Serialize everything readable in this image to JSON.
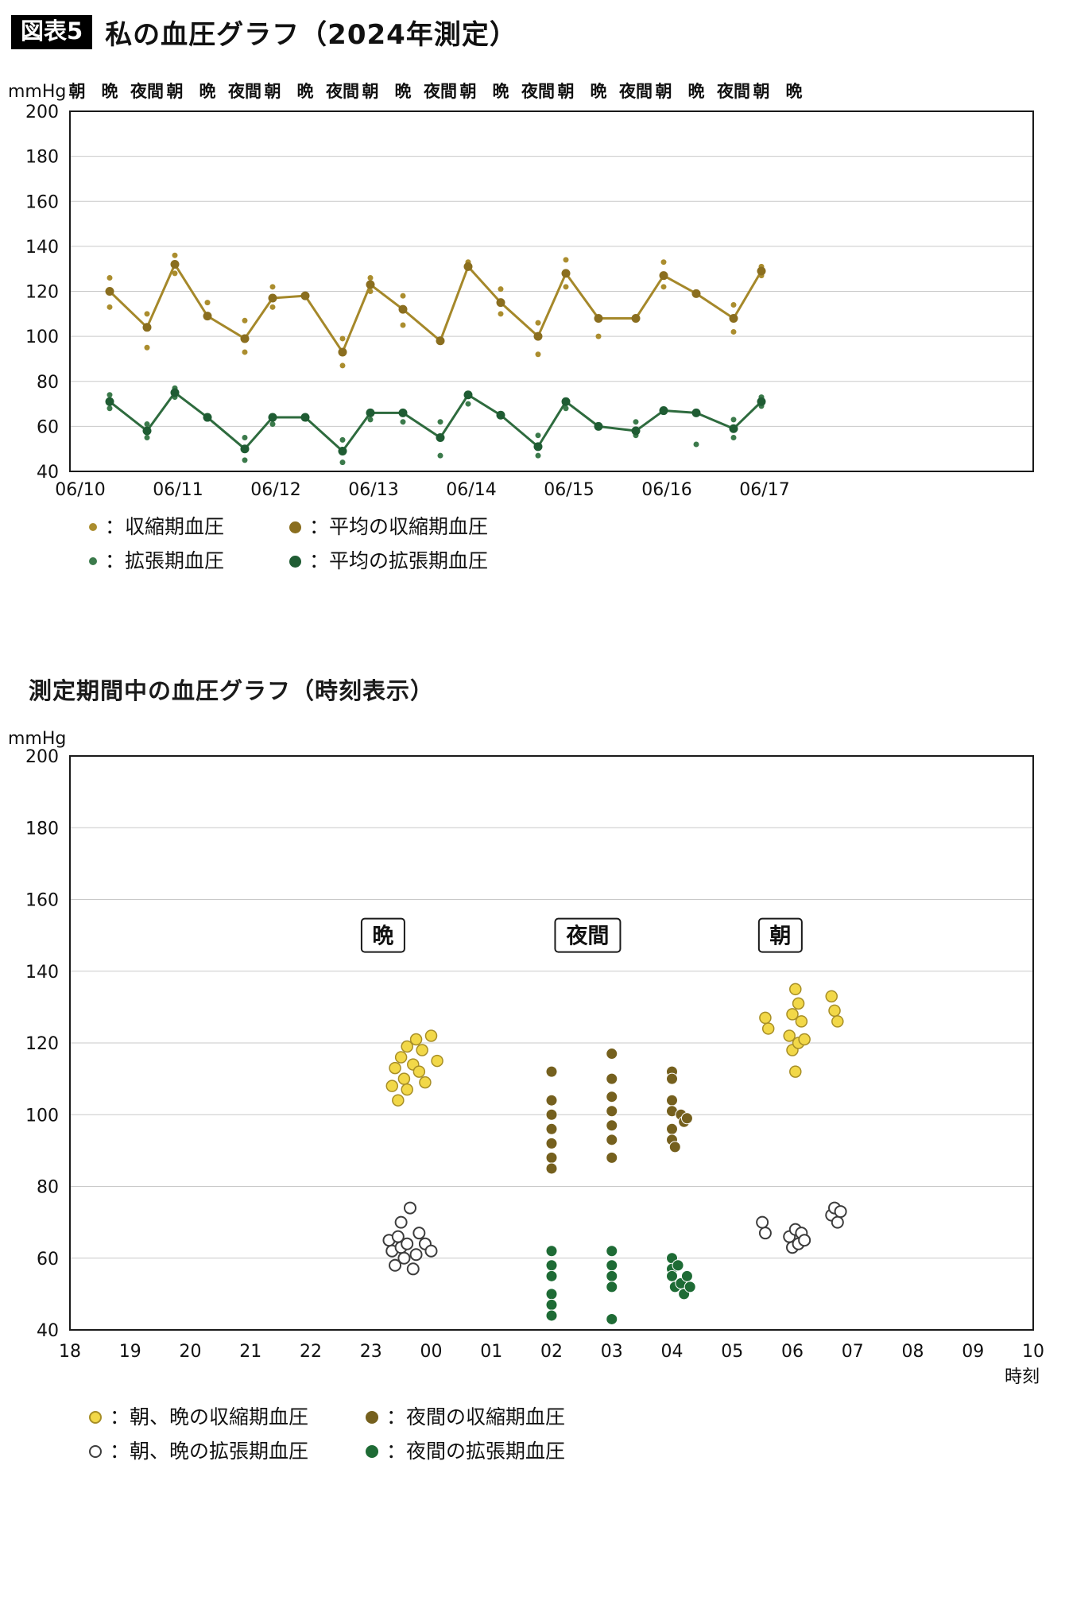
{
  "header": {
    "tag": "図表5",
    "title": "私の血圧グラフ（2024年測定）"
  },
  "section2": {
    "title": "測定期間中の血圧グラフ（時刻表示）"
  },
  "colors": {
    "grid": "#c9c9c9",
    "frame": "#1a1a1a",
    "systolic": "#ab8d2e",
    "systolic_line": "#a5882a",
    "systolic_mean": "#8a6e1f",
    "diastolic": "#3b7a4b",
    "diastolic_line": "#2e6b3e",
    "diastolic_mean": "#1f5c33",
    "yellow": "#f2d848",
    "yellow_stroke": "#a78e26",
    "olive": "#75601e",
    "night_green": "#1e6b35",
    "open_stroke": "#3c3c3c"
  },
  "legend1": {
    "items": [
      {
        "icon": "systolic-reading-dot",
        "label": "：収縮期血圧"
      },
      {
        "icon": "mean-systolic-dot",
        "label": "：平均の収縮期血圧"
      },
      {
        "icon": "diastolic-reading-dot",
        "label": "：拡張期血圧"
      },
      {
        "icon": "mean-diastolic-dot",
        "label": "：平均の拡張期血圧"
      }
    ]
  },
  "legend2": {
    "items": [
      {
        "icon": "morning-evening-systolic-dot",
        "label": "：朝、晩の収縮期血圧"
      },
      {
        "icon": "night-systolic-dot",
        "label": "：夜間の収縮期血圧"
      },
      {
        "icon": "morning-evening-diastolic-dot",
        "label": "：朝、晩の拡張期血圧"
      },
      {
        "icon": "night-diastolic-dot",
        "label": "：夜間の拡張期血圧"
      }
    ]
  },
  "chart_data": [
    {
      "type": "line",
      "title": "私の血圧グラフ（2024年測定）",
      "unit": "mmHg",
      "ylim": [
        40,
        200
      ],
      "grid": true,
      "y_tick_labels": [
        200,
        180,
        160,
        140,
        120,
        100,
        80,
        60,
        40
      ],
      "dates": [
        "06/10",
        "06/11",
        "06/12",
        "06/13",
        "06/14",
        "06/15",
        "06/16",
        "06/17"
      ],
      "slot_labels": [
        "朝",
        "晩",
        "夜間"
      ],
      "mean_systolic_label": "平均の収縮期血圧",
      "mean_diastolic_label": "平均の拡張期血圧",
      "systolic_label": "収縮期血圧",
      "diastolic_label": "拡張期血圧",
      "mean_systolic": [
        [
          0,
          1,
          120
        ],
        [
          0,
          2,
          104
        ],
        [
          1,
          0,
          132
        ],
        [
          1,
          1,
          109
        ],
        [
          1,
          2,
          99
        ],
        [
          2,
          0,
          117
        ],
        [
          2,
          1,
          118
        ],
        [
          2,
          2,
          93
        ],
        [
          3,
          0,
          123
        ],
        [
          3,
          1,
          112
        ],
        [
          3,
          2,
          98
        ],
        [
          4,
          0,
          131
        ],
        [
          4,
          1,
          115
        ],
        [
          4,
          2,
          100
        ],
        [
          5,
          0,
          128
        ],
        [
          5,
          1,
          108
        ],
        [
          5,
          2,
          108
        ],
        [
          6,
          0,
          127
        ],
        [
          6,
          1,
          119
        ],
        [
          6,
          2,
          108
        ],
        [
          7,
          0,
          129
        ]
      ],
      "mean_diastolic": [
        [
          0,
          1,
          71
        ],
        [
          0,
          2,
          58
        ],
        [
          1,
          0,
          75
        ],
        [
          1,
          1,
          64
        ],
        [
          1,
          2,
          50
        ],
        [
          2,
          0,
          64
        ],
        [
          2,
          1,
          64
        ],
        [
          2,
          2,
          49
        ],
        [
          3,
          0,
          66
        ],
        [
          3,
          1,
          66
        ],
        [
          3,
          2,
          55
        ],
        [
          4,
          0,
          74
        ],
        [
          4,
          1,
          65
        ],
        [
          4,
          2,
          51
        ],
        [
          5,
          0,
          71
        ],
        [
          5,
          1,
          60
        ],
        [
          5,
          2,
          58
        ],
        [
          6,
          0,
          67
        ],
        [
          6,
          1,
          66
        ],
        [
          6,
          2,
          59
        ],
        [
          7,
          0,
          71
        ]
      ],
      "systolic_readings": [
        [
          0,
          1,
          113
        ],
        [
          0,
          1,
          126
        ],
        [
          0,
          2,
          95
        ],
        [
          0,
          2,
          110
        ],
        [
          1,
          0,
          136
        ],
        [
          1,
          0,
          128
        ],
        [
          1,
          1,
          115
        ],
        [
          1,
          2,
          93
        ],
        [
          1,
          2,
          107
        ],
        [
          2,
          0,
          113
        ],
        [
          2,
          0,
          122
        ],
        [
          2,
          2,
          87
        ],
        [
          2,
          2,
          99
        ],
        [
          3,
          0,
          120
        ],
        [
          3,
          0,
          126
        ],
        [
          3,
          1,
          105
        ],
        [
          3,
          1,
          118
        ],
        [
          4,
          0,
          133
        ],
        [
          4,
          1,
          110
        ],
        [
          4,
          1,
          121
        ],
        [
          4,
          2,
          92
        ],
        [
          4,
          2,
          106
        ],
        [
          5,
          0,
          134
        ],
        [
          5,
          0,
          122
        ],
        [
          5,
          1,
          100
        ],
        [
          6,
          0,
          133
        ],
        [
          6,
          0,
          122
        ],
        [
          6,
          2,
          102
        ],
        [
          6,
          2,
          114
        ],
        [
          7,
          0,
          127
        ],
        [
          7,
          0,
          131
        ]
      ],
      "diastolic_readings": [
        [
          0,
          1,
          68
        ],
        [
          0,
          1,
          74
        ],
        [
          0,
          2,
          55
        ],
        [
          0,
          2,
          61
        ],
        [
          1,
          0,
          73
        ],
        [
          1,
          0,
          77
        ],
        [
          1,
          2,
          45
        ],
        [
          1,
          2,
          55
        ],
        [
          2,
          0,
          61
        ],
        [
          2,
          2,
          44
        ],
        [
          2,
          2,
          54
        ],
        [
          3,
          0,
          63
        ],
        [
          3,
          1,
          62
        ],
        [
          3,
          2,
          47
        ],
        [
          3,
          2,
          62
        ],
        [
          4,
          0,
          70
        ],
        [
          4,
          2,
          47
        ],
        [
          4,
          2,
          56
        ],
        [
          5,
          0,
          68
        ],
        [
          5,
          2,
          56
        ],
        [
          5,
          2,
          62
        ],
        [
          6,
          1,
          52
        ],
        [
          6,
          2,
          55
        ],
        [
          6,
          2,
          63
        ],
        [
          7,
          0,
          69
        ],
        [
          7,
          0,
          73
        ]
      ]
    },
    {
      "type": "scatter",
      "title": "測定期間中の血圧グラフ（時刻表示）",
      "unit": "mmHg",
      "xlabel": "時刻",
      "ylim": [
        40,
        200
      ],
      "grid": true,
      "y_tick_labels": [
        200,
        180,
        160,
        140,
        120,
        100,
        80,
        60,
        40
      ],
      "x_tick_labels": [
        "18",
        "19",
        "20",
        "21",
        "22",
        "23",
        "00",
        "01",
        "02",
        "03",
        "04",
        "05",
        "06",
        "07",
        "08",
        "09",
        "10"
      ],
      "region_labels": [
        {
          "text": "晩",
          "t": 23.2,
          "value": 150
        },
        {
          "text": "夜間",
          "t": 26.6,
          "value": 150
        },
        {
          "text": "朝",
          "t": 29.8,
          "value": 150
        }
      ],
      "series": [
        {
          "name": "朝、晩の収縮期血圧",
          "style": "yellow",
          "point_name": "morning-evening-systolic-point",
          "points": [
            [
              23.35,
              108
            ],
            [
              23.4,
              113
            ],
            [
              23.45,
              104
            ],
            [
              23.5,
              116
            ],
            [
              23.55,
              110
            ],
            [
              23.6,
              119
            ],
            [
              23.6,
              107
            ],
            [
              23.7,
              114
            ],
            [
              23.75,
              121
            ],
            [
              23.8,
              112
            ],
            [
              23.85,
              118
            ],
            [
              23.9,
              109
            ],
            [
              24.0,
              122
            ],
            [
              24.1,
              115
            ],
            [
              29.55,
              127
            ],
            [
              29.6,
              124
            ],
            [
              29.95,
              122
            ],
            [
              30.0,
              128
            ],
            [
              30.0,
              118
            ],
            [
              30.05,
              135
            ],
            [
              30.05,
              112
            ],
            [
              30.1,
              131
            ],
            [
              30.1,
              120
            ],
            [
              30.15,
              126
            ],
            [
              30.2,
              121
            ],
            [
              30.65,
              133
            ],
            [
              30.7,
              129
            ],
            [
              30.75,
              126
            ]
          ]
        },
        {
          "name": "夜間の収縮期血圧",
          "style": "olive",
          "point_name": "night-systolic-point",
          "points": [
            [
              26,
              112
            ],
            [
              26,
              104
            ],
            [
              26,
              100
            ],
            [
              26,
              96
            ],
            [
              26,
              92
            ],
            [
              26,
              88
            ],
            [
              26,
              85
            ],
            [
              27,
              117
            ],
            [
              27,
              110
            ],
            [
              27,
              105
            ],
            [
              27,
              101
            ],
            [
              27,
              97
            ],
            [
              27,
              93
            ],
            [
              27,
              88
            ],
            [
              28,
              112
            ],
            [
              28,
              110
            ],
            [
              28,
              104
            ],
            [
              28,
              101
            ],
            [
              28,
              96
            ],
            [
              28,
              93
            ],
            [
              28.05,
              91
            ],
            [
              28.15,
              100
            ],
            [
              28.2,
              98
            ],
            [
              28.25,
              99
            ]
          ]
        },
        {
          "name": "朝、晩の拡張期血圧",
          "style": "open",
          "point_name": "morning-evening-diastolic-point",
          "points": [
            [
              23.3,
              65
            ],
            [
              23.35,
              62
            ],
            [
              23.4,
              58
            ],
            [
              23.45,
              66
            ],
            [
              23.5,
              70
            ],
            [
              23.5,
              63
            ],
            [
              23.55,
              60
            ],
            [
              23.6,
              64
            ],
            [
              23.65,
              74
            ],
            [
              23.7,
              57
            ],
            [
              23.75,
              61
            ],
            [
              23.8,
              67
            ],
            [
              23.9,
              64
            ],
            [
              24.0,
              62
            ],
            [
              29.5,
              70
            ],
            [
              29.55,
              67
            ],
            [
              29.95,
              66
            ],
            [
              30.0,
              63
            ],
            [
              30.05,
              68
            ],
            [
              30.1,
              64
            ],
            [
              30.15,
              67
            ],
            [
              30.2,
              65
            ],
            [
              30.65,
              72
            ],
            [
              30.7,
              74
            ],
            [
              30.75,
              70
            ],
            [
              30.8,
              73
            ]
          ]
        },
        {
          "name": "夜間の拡張期血圧",
          "style": "ngreen",
          "point_name": "night-diastolic-point",
          "points": [
            [
              26,
              62
            ],
            [
              26,
              58
            ],
            [
              26,
              55
            ],
            [
              26,
              50
            ],
            [
              26,
              47
            ],
            [
              26,
              44
            ],
            [
              27,
              62
            ],
            [
              27,
              58
            ],
            [
              27,
              55
            ],
            [
              27,
              52
            ],
            [
              27,
              43
            ],
            [
              28,
              60
            ],
            [
              28,
              57
            ],
            [
              28,
              55
            ],
            [
              28.05,
              52
            ],
            [
              28.1,
              58
            ],
            [
              28.15,
              53
            ],
            [
              28.2,
              50
            ],
            [
              28.25,
              55
            ],
            [
              28.3,
              52
            ]
          ]
        }
      ]
    }
  ]
}
